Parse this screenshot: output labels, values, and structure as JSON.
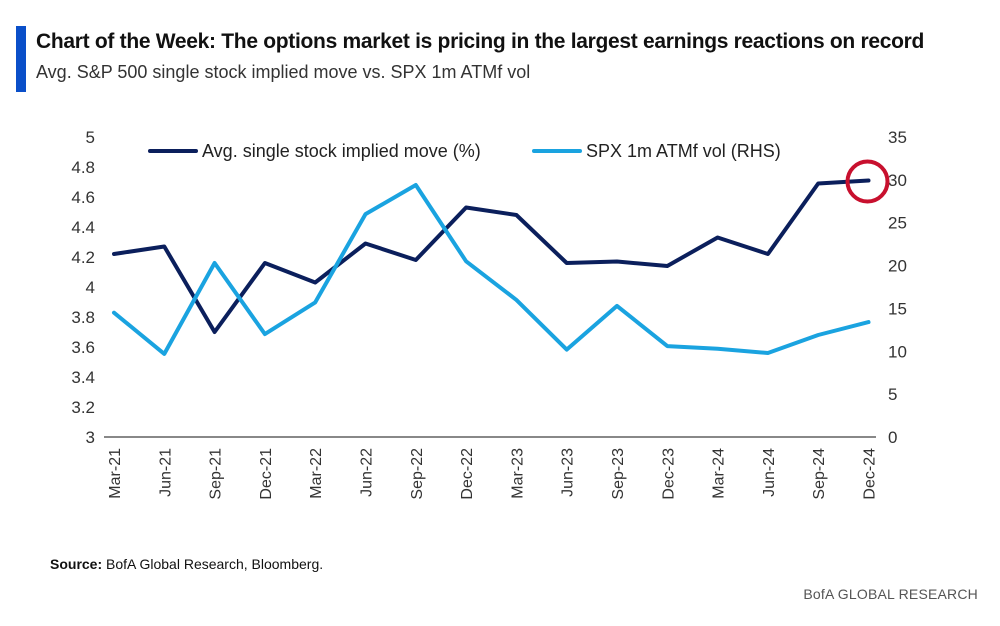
{
  "header": {
    "title": "Chart of the Week: The options market is pricing in the largest earnings reactions on record",
    "subtitle": "Avg. S&P 500 single stock implied move vs. SPX 1m ATMf vol"
  },
  "footer": {
    "source_label": "Source:",
    "source_text": "BofA Global Research, Bloomberg.",
    "brand": "BofA GLOBAL RESEARCH"
  },
  "colors": {
    "accent": "#0a4fc9",
    "series_dark": "#0b1f5c",
    "series_light": "#1aa3e0",
    "highlight_circle": "#c8102e",
    "axis": "#888888"
  },
  "chart_data": {
    "type": "line",
    "title": "",
    "x": [
      "Mar-21",
      "Jun-21",
      "Sep-21",
      "Dec-21",
      "Mar-22",
      "Jun-22",
      "Sep-22",
      "Dec-22",
      "Mar-23",
      "Jun-23",
      "Sep-23",
      "Dec-23",
      "Mar-24",
      "Jun-24",
      "Sep-24",
      "Dec-24"
    ],
    "y_left": {
      "ticks": [
        "5",
        "4.8",
        "4.6",
        "4.4",
        "4.2",
        "4",
        "3.8",
        "3.6",
        "3.4",
        "3.2",
        "3"
      ],
      "ylim": [
        3,
        5
      ]
    },
    "y_right": {
      "ticks": [
        "35",
        "30",
        "25",
        "20",
        "15",
        "10",
        "5",
        "0"
      ],
      "ylim": [
        0,
        35
      ]
    },
    "series": [
      {
        "name": "Avg. single stock implied move (%)",
        "axis": "left",
        "color": "#0b1f5c",
        "values": [
          4.22,
          4.27,
          3.7,
          4.16,
          4.03,
          4.29,
          4.18,
          4.53,
          4.48,
          4.16,
          4.17,
          4.14,
          4.33,
          4.22,
          4.69,
          4.71
        ]
      },
      {
        "name": "SPX 1m ATMf vol (RHS)",
        "axis": "right",
        "color": "#1aa3e0",
        "values": [
          14.5,
          9.7,
          20.3,
          12.0,
          15.7,
          26.0,
          29.4,
          20.5,
          16.0,
          10.2,
          15.3,
          10.6,
          10.3,
          9.8,
          11.9,
          13.4
        ]
      }
    ],
    "legend_position": "top",
    "grid": false,
    "annotation": "circle highlighting the Dec-24 point of the implied move series"
  }
}
